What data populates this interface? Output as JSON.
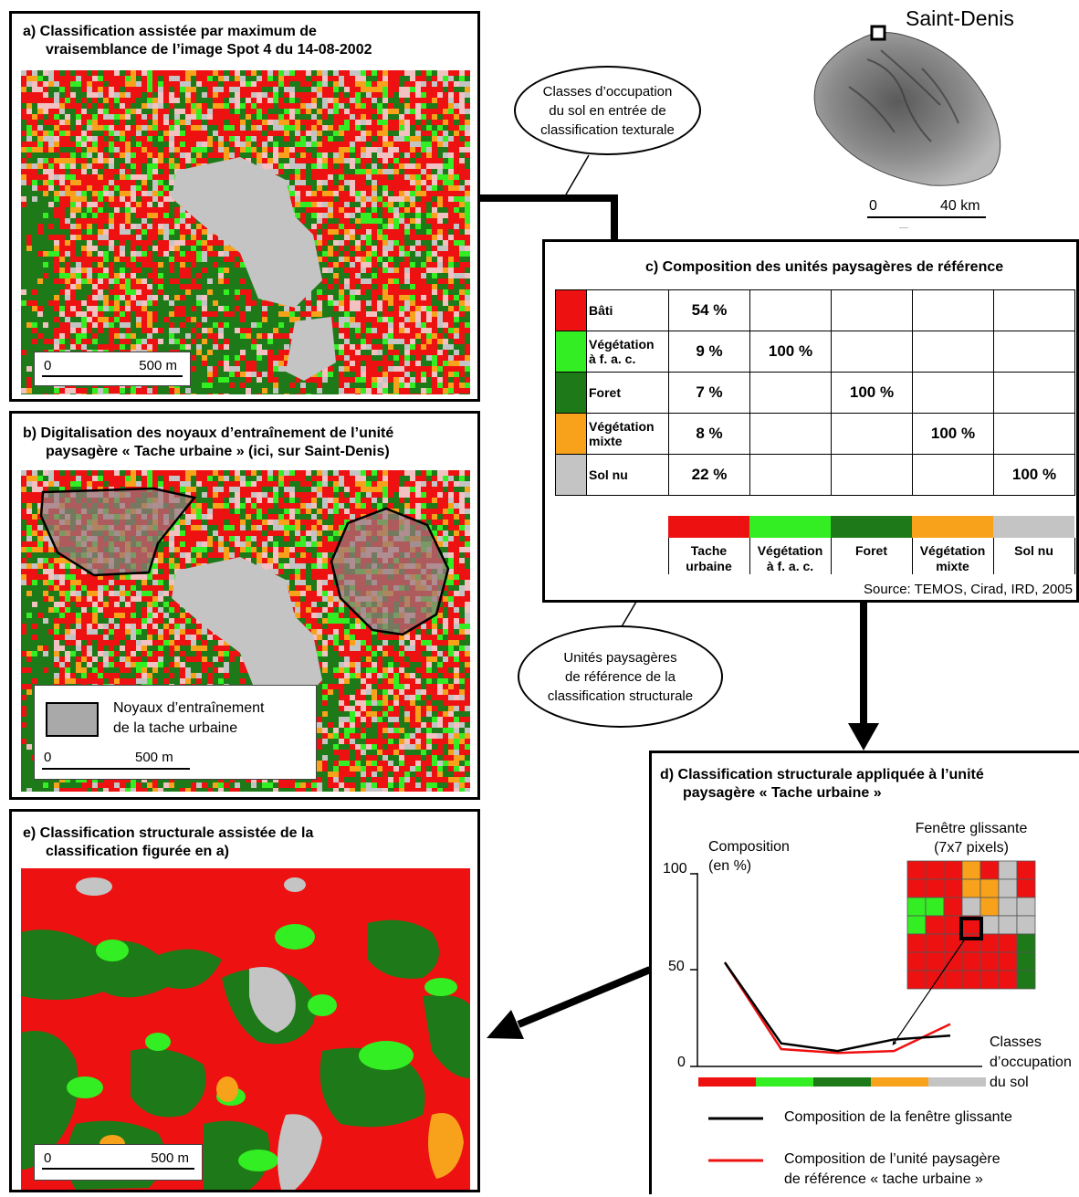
{
  "colors": {
    "bati": "#ee1111",
    "veg_fac": "#33ee22",
    "foret": "#1e7a18",
    "veg_mixte": "#f7a21a",
    "sol_nu": "#c4c4c4"
  },
  "panel_a": {
    "title_line1": "a)  Classification assistée par maximum de",
    "title_line2": "vraisemblance de l’image Spot 4 du 14-08-2002",
    "scale_zero": "0",
    "scale_distance": "500 m"
  },
  "panel_b": {
    "title_line1": "b)  Digitalisation des noyaux d’entraînement de l’unité",
    "title_line2": "paysagère « Tache urbaine » (ici, sur Saint-Denis)",
    "legend_line1": "Noyaux d’entraînement",
    "legend_line2": "de la tache urbaine",
    "scale_zero": "0",
    "scale_distance": "500 m"
  },
  "panel_e": {
    "title_line1": "e)  Classification structurale assistée de la",
    "title_line2": "classification figurée en a)",
    "scale_zero": "0",
    "scale_distance": "500 m"
  },
  "island": {
    "city": "Saint-Denis",
    "scale_zero": "0",
    "scale_distance": "40 km"
  },
  "bubble_top": [
    "Classes d’occupation",
    "du sol en entrée de",
    "classification texturale"
  ],
  "bubble_mid": [
    "Unités paysagères",
    "de référence de la",
    "classification structurale"
  ],
  "panel_c": {
    "title": "c) Composition des unités paysagères de référence",
    "source": "Source: TEMOS, Cirad, IRD, 2005",
    "rows": [
      {
        "label1": "Bâti",
        "label2": "",
        "values": [
          "54 %",
          "",
          "",
          "",
          ""
        ]
      },
      {
        "label1": "Végétation",
        "label2": "à f. a. c.",
        "values": [
          "9 %",
          "100 %",
          "",
          "",
          ""
        ]
      },
      {
        "label1": "Foret",
        "label2": "",
        "values": [
          "7 %",
          "",
          "100 %",
          "",
          ""
        ]
      },
      {
        "label1": "Végétation",
        "label2": "mixte",
        "values": [
          "8 %",
          "",
          "",
          "100 %",
          ""
        ]
      },
      {
        "label1": "Sol nu",
        "label2": "",
        "values": [
          "22 %",
          "",
          "",
          "",
          "100 %"
        ]
      }
    ],
    "units": [
      {
        "line1": "Tache",
        "line2": "urbaine"
      },
      {
        "line1": "Végétation",
        "line2": "à f. a. c."
      },
      {
        "line1": "Foret",
        "line2": ""
      },
      {
        "line1": "Végétation",
        "line2": "mixte"
      },
      {
        "line1": "Sol nu",
        "line2": ""
      }
    ]
  },
  "panel_d": {
    "title_line1": "d)  Classification structurale appliquée à l’unité",
    "title_line2": "paysagère « Tache urbaine »",
    "y_label_line1": "Composition",
    "y_label_line2": "(en %)",
    "y_ticks": [
      "100",
      "50",
      "0"
    ],
    "x_label_line1": "Classes",
    "x_label_line2": "d’occupation",
    "x_label_line3": "du sol",
    "window_label_line1": "Fenêtre glissante",
    "window_label_line2": "(7x7 pixels)",
    "legend_black": "Composition de la fenêtre glissante",
    "legend_red_line1": "Composition de l’unité paysagère",
    "legend_red_line2": "de référence « tache urbaine »"
  },
  "chart_data": {
    "type": "line",
    "categories": [
      "Bâti",
      "Végétation à f. a. c.",
      "Foret",
      "Végétation mixte",
      "Sol nu"
    ],
    "ylabel": "Composition (en %)",
    "xlabel": "Classes d’occupation du sol",
    "ylim": [
      0,
      100
    ],
    "series": [
      {
        "name": "Composition de la fenêtre glissante",
        "color": "#000000",
        "values": [
          54,
          12,
          8,
          14,
          16
        ]
      },
      {
        "name": "Composition de l’unité paysagère de référence « tache urbaine »",
        "color": "#ee1111",
        "values": [
          54,
          9,
          7,
          8,
          22
        ]
      }
    ]
  },
  "window_grid": [
    "RRRORGR",
    "RRROOGR",
    "LLRGOGG",
    "LRRBGGG",
    "RRRRRRD",
    "RRRRRRD",
    "RRRRRRD"
  ]
}
